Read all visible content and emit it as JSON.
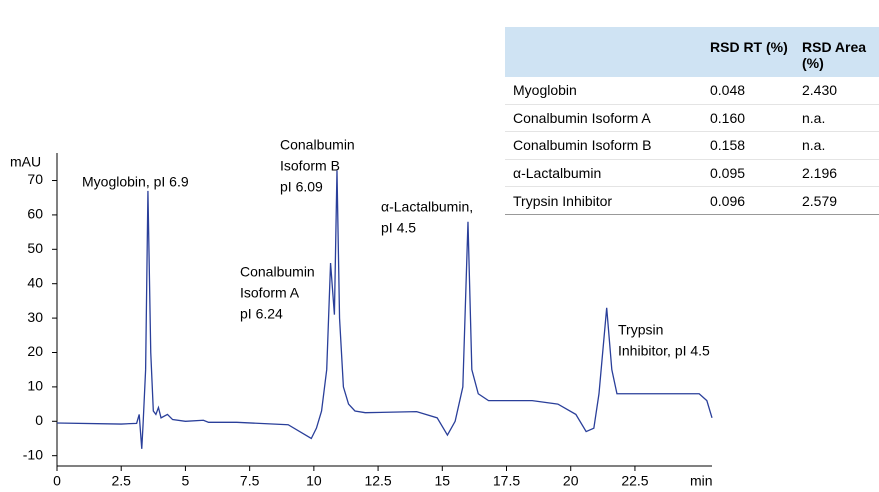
{
  "chart_data": {
    "type": "line",
    "y_label": "mAU",
    "x_label": "min",
    "x": [
      0,
      2.5,
      3.1,
      3.2,
      3.3,
      3.35,
      3.45,
      3.54,
      3.65,
      3.75,
      3.85,
      3.95,
      4.05,
      4.3,
      4.5,
      5,
      5.7,
      5.9,
      7,
      9,
      9.9,
      10.1,
      10.3,
      10.5,
      10.65,
      10.8,
      10.9,
      11.0,
      11.15,
      11.35,
      11.6,
      12,
      14,
      14.8,
      15.2,
      15.5,
      15.8,
      16.0,
      16.15,
      16.4,
      16.8,
      18.5,
      19.5,
      20.2,
      20.6,
      20.9,
      21.1,
      21.4,
      21.6,
      21.8,
      22.5,
      25,
      25.3,
      25.5
    ],
    "values": [
      -0.5,
      -0.8,
      -0.6,
      2,
      -8,
      -1,
      15,
      67,
      20,
      3,
      2,
      4,
      1,
      2,
      0.5,
      0,
      0.3,
      -0.3,
      -0.3,
      -1,
      -5,
      -2,
      3,
      15,
      46,
      31,
      73,
      30,
      10,
      5,
      3,
      2.5,
      2.8,
      1,
      -4,
      0,
      10,
      58,
      15,
      8,
      6,
      6,
      5,
      2,
      -3,
      -2,
      8,
      33,
      15,
      8,
      8,
      8,
      6,
      1
    ],
    "color": "#2a3f9a",
    "xlim": [
      0,
      25.5
    ],
    "xticks": [
      0,
      2.5,
      5,
      7.5,
      10,
      12.5,
      15,
      17.5,
      20,
      22.5
    ],
    "ylim": [
      -13,
      78
    ],
    "yticks": [
      -10,
      0,
      10,
      20,
      30,
      40,
      50,
      60,
      70
    ],
    "annotations": [
      [
        "Myoglobin, pI 6.9"
      ],
      [
        "Conalbumin",
        "Isoform B",
        "pI 6.09"
      ],
      [
        "α-Lactalbumin,",
        "pI 4.5"
      ],
      [
        "Conalbumin",
        "Isoform A",
        "pI 6.24"
      ],
      [
        "Trypsin",
        "Inhibitor, pI 4.5"
      ]
    ],
    "table": {
      "header": [
        "",
        "RSD RT (%)",
        "RSD Area (%)"
      ],
      "rows": [
        [
          "Myoglobin",
          "0.048",
          "2.430"
        ],
        [
          "Conalbumin Isoform A",
          "0.160",
          "n.a."
        ],
        [
          "Conalbumin Isoform B",
          "0.158",
          "n.a."
        ],
        [
          "α-Lactalbumin",
          "0.095",
          "2.196"
        ],
        [
          "Trypsin Inhibitor",
          "0.096",
          "2.579"
        ]
      ]
    }
  }
}
